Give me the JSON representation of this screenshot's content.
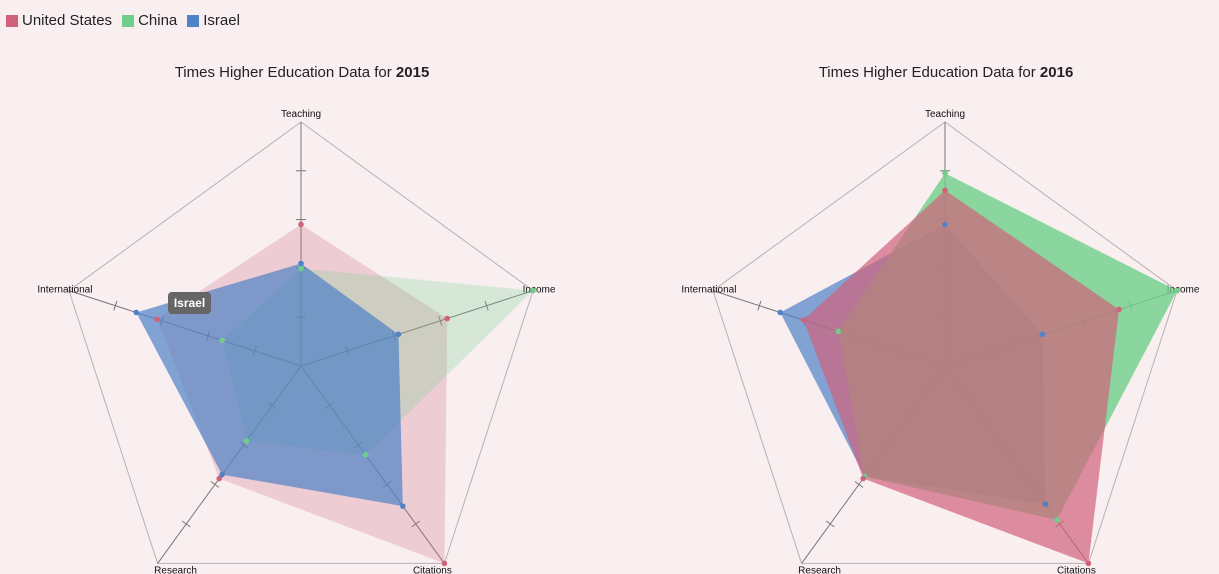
{
  "legend": {
    "items": [
      {
        "label": "United States",
        "color": "#d0637a"
      },
      {
        "label": "China",
        "color": "#6fcf8a"
      },
      {
        "label": "Israel",
        "color": "#4f82c6"
      }
    ]
  },
  "titles": {
    "prefix": "Times Higher Education Data for ",
    "year_2015": "2015",
    "year_2016": "2016"
  },
  "tooltip": {
    "text": "Israel"
  },
  "chart_data": [
    {
      "type": "radar",
      "title": "Times Higher Education Data for 2015",
      "axes": [
        "Teaching",
        "Income",
        "Citations",
        "Research",
        "International"
      ],
      "scale_max": 100,
      "series": [
        {
          "name": "United States",
          "color": "#d0637a",
          "opacity": 0.25,
          "values": [
            58,
            63,
            100,
            57,
            62
          ]
        },
        {
          "name": "China",
          "color": "#6fcf8a",
          "opacity": 0.25,
          "values": [
            40,
            100,
            45,
            38,
            34
          ]
        },
        {
          "name": "Israel",
          "color": "#4f82c6",
          "opacity": 0.7,
          "values": [
            42,
            42,
            71,
            55,
            71
          ]
        }
      ]
    },
    {
      "type": "radar",
      "title": "Times Higher Education Data for 2016",
      "axes": [
        "Teaching",
        "Income",
        "Citations",
        "Research",
        "International"
      ],
      "scale_max": 100,
      "series": [
        {
          "name": "Israel",
          "color": "#4f82c6",
          "opacity": 0.7,
          "values": [
            58,
            42,
            70,
            56,
            71
          ]
        },
        {
          "name": "China",
          "color": "#6fcf8a",
          "opacity": 0.8,
          "values": [
            79,
            100,
            78,
            56,
            46
          ]
        },
        {
          "name": "United States",
          "color": "#d0637a",
          "opacity": 0.7,
          "values": [
            72,
            75,
            100,
            57,
            61
          ]
        }
      ]
    }
  ]
}
